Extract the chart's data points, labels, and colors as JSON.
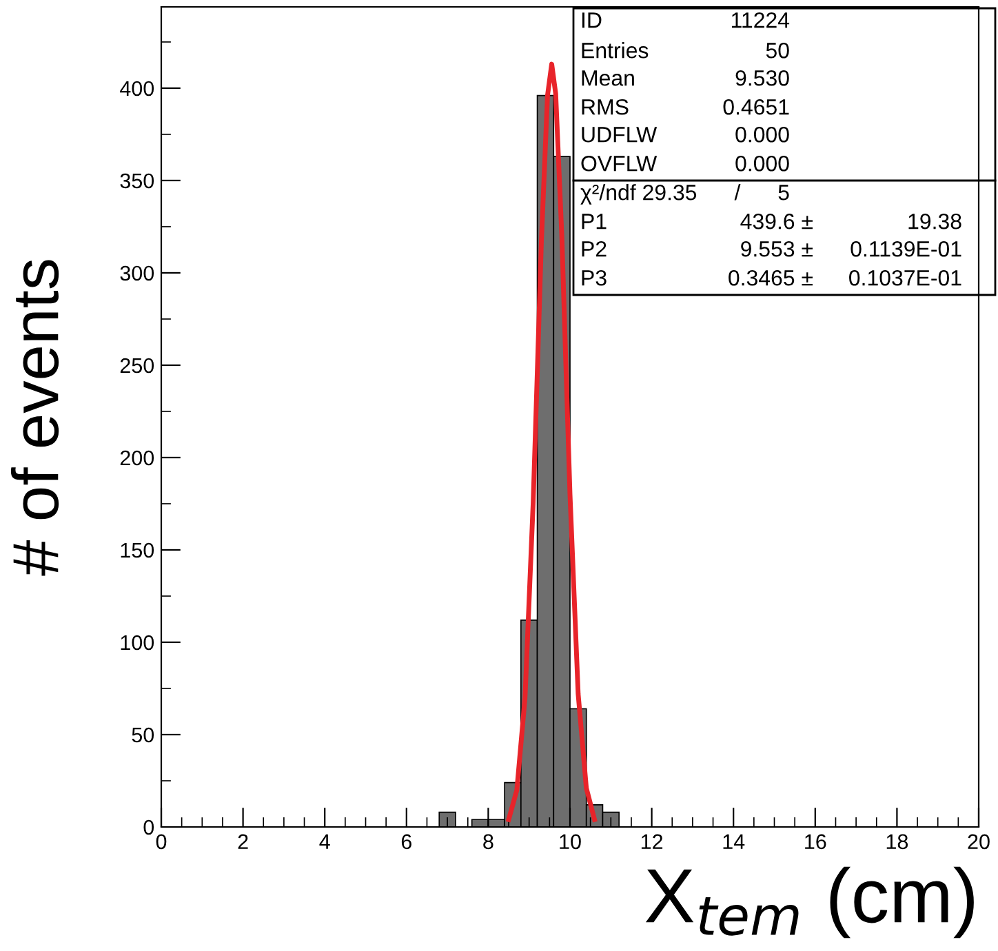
{
  "chart_data": {
    "type": "histogram",
    "xlabel": "X$_{tem}$ (cm)",
    "ylabel": "# of events",
    "bins": [
      6.8,
      7.2,
      7.6,
      8.0,
      8.4,
      8.8,
      9.2,
      9.6,
      10.0,
      10.4,
      10.8,
      11.2
    ],
    "values": [
      8,
      0,
      4,
      4,
      24,
      112,
      396,
      363,
      64,
      12,
      8
    ],
    "color": "#6e6e6e",
    "series": [
      {
        "type": "line",
        "color": "#e8242a",
        "x": [
          8.5,
          8.7,
          8.9,
          9.1,
          9.2,
          9.3,
          9.45,
          9.553,
          9.65,
          9.8,
          9.9,
          10.0,
          10.2,
          10.4,
          10.6
        ],
        "values": [
          4,
          20,
          70,
          176,
          246,
          317,
          396,
          413,
          397,
          320,
          250,
          180,
          72,
          21,
          4
        ]
      }
    ],
    "xlim": [
      0,
      20
    ],
    "xticks": [
      0,
      2,
      4,
      6,
      8,
      10,
      12,
      14,
      16,
      18,
      20
    ],
    "ylim": [
      0,
      444
    ],
    "yticks": [
      0,
      50,
      100,
      150,
      200,
      250,
      300,
      350,
      400
    ],
    "grid": false,
    "legend": false,
    "annotations": [
      "ID",
      "11224",
      "Entries",
      "50",
      "Mean",
      "9.530",
      "RMS",
      "0.4651",
      "UDFLW",
      "0.000",
      "OVFLW",
      "0.000",
      "χ²/ndf 29.35",
      "/",
      "5",
      "P1",
      "439.6 ±",
      "19.38",
      "P2",
      "9.553 ±",
      "0.1139E-01",
      "P3",
      "0.3465 ±",
      "0.1037E-01"
    ]
  }
}
